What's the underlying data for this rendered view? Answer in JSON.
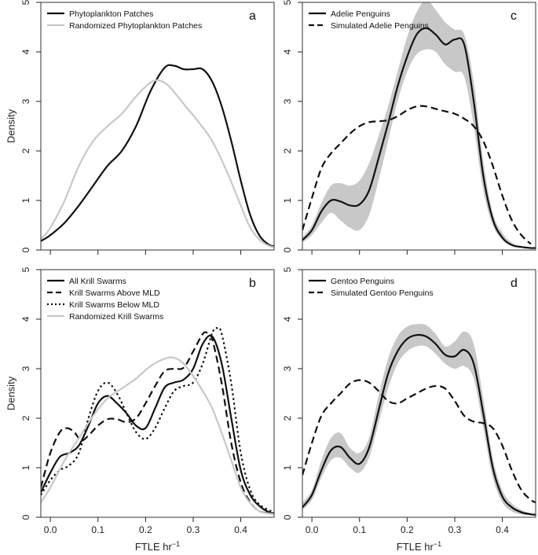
{
  "figure": {
    "xlabel": "FTLE hr",
    "xlabel_sup": "−1",
    "ylabel": "Density"
  },
  "chart_data": [
    {
      "id": "a",
      "type": "line",
      "panel_label": "a",
      "xlim": [
        -0.02,
        0.47
      ],
      "ylim": [
        0,
        5
      ],
      "xticks": [
        "0.0",
        "0.1",
        "0.2",
        "0.3",
        "0.4"
      ],
      "xtick_values": [
        0.0,
        0.1,
        0.2,
        0.3,
        0.4
      ],
      "yticks": [
        "0",
        "1",
        "2",
        "3",
        "4",
        "5"
      ],
      "ytick_values": [
        0,
        1,
        2,
        3,
        4,
        5
      ],
      "show_ylabel": true,
      "show_xlabel": false,
      "show_xtick_labels": false,
      "legend_position": "top-left",
      "series": [
        {
          "name": "Phytoplankton Patches",
          "color": "#111111",
          "style": "solid",
          "width": 2.2,
          "x": [
            -0.02,
            0.0,
            0.03,
            0.06,
            0.09,
            0.12,
            0.15,
            0.18,
            0.21,
            0.24,
            0.26,
            0.28,
            0.3,
            0.32,
            0.34,
            0.36,
            0.38,
            0.4,
            0.42,
            0.44,
            0.46,
            0.47
          ],
          "y": [
            0.18,
            0.3,
            0.55,
            0.9,
            1.3,
            1.7,
            2.0,
            2.5,
            3.2,
            3.68,
            3.72,
            3.65,
            3.65,
            3.65,
            3.4,
            2.9,
            2.2,
            1.4,
            0.7,
            0.28,
            0.1,
            0.08
          ]
        },
        {
          "name": "Randomized Phytoplankton Patches",
          "color": "#c8c8c8",
          "style": "solid",
          "width": 2.2,
          "x": [
            -0.02,
            0.0,
            0.03,
            0.06,
            0.09,
            0.12,
            0.15,
            0.18,
            0.21,
            0.23,
            0.25,
            0.28,
            0.31,
            0.34,
            0.37,
            0.4,
            0.42,
            0.44,
            0.46,
            0.47
          ],
          "y": [
            0.22,
            0.45,
            1.0,
            1.7,
            2.2,
            2.5,
            2.75,
            3.1,
            3.38,
            3.42,
            3.3,
            2.95,
            2.6,
            2.2,
            1.6,
            0.9,
            0.45,
            0.2,
            0.08,
            0.06
          ]
        }
      ]
    },
    {
      "id": "b",
      "type": "line",
      "panel_label": "b",
      "xlim": [
        -0.02,
        0.47
      ],
      "ylim": [
        0,
        5
      ],
      "xticks": [
        "0.0",
        "0.1",
        "0.2",
        "0.3",
        "0.4"
      ],
      "xtick_values": [
        0.0,
        0.1,
        0.2,
        0.3,
        0.4
      ],
      "yticks": [
        "0",
        "1",
        "2",
        "3",
        "4",
        "5"
      ],
      "ytick_values": [
        0,
        1,
        2,
        3,
        4,
        5
      ],
      "show_ylabel": true,
      "show_xlabel": true,
      "show_xtick_labels": true,
      "legend_position": "top-left",
      "series": [
        {
          "name": "All Krill Swarms",
          "color": "#111111",
          "style": "solid",
          "width": 2.2,
          "x": [
            -0.02,
            0.0,
            0.02,
            0.04,
            0.06,
            0.08,
            0.1,
            0.12,
            0.14,
            0.16,
            0.18,
            0.2,
            0.22,
            0.24,
            0.26,
            0.28,
            0.3,
            0.32,
            0.34,
            0.36,
            0.38,
            0.4,
            0.42,
            0.44,
            0.46,
            0.47
          ],
          "y": [
            0.5,
            0.9,
            1.22,
            1.3,
            1.45,
            1.85,
            2.3,
            2.45,
            2.3,
            2.1,
            1.85,
            1.8,
            2.2,
            2.62,
            2.72,
            2.78,
            3.0,
            3.5,
            3.65,
            3.1,
            2.0,
            0.95,
            0.45,
            0.22,
            0.1,
            0.08
          ]
        },
        {
          "name": "Krill Swarms Above MLD",
          "color": "#111111",
          "style": "dashed",
          "width": 2.2,
          "x": [
            -0.02,
            0.0,
            0.02,
            0.035,
            0.05,
            0.065,
            0.08,
            0.1,
            0.12,
            0.14,
            0.16,
            0.18,
            0.2,
            0.22,
            0.24,
            0.26,
            0.28,
            0.3,
            0.32,
            0.33,
            0.34,
            0.36,
            0.38,
            0.4,
            0.42,
            0.44,
            0.47
          ],
          "y": [
            0.6,
            1.3,
            1.72,
            1.8,
            1.72,
            1.55,
            1.65,
            1.85,
            1.98,
            1.98,
            1.92,
            2.0,
            2.3,
            2.65,
            2.95,
            3.0,
            3.02,
            3.35,
            3.7,
            3.72,
            3.6,
            2.7,
            1.5,
            0.7,
            0.3,
            0.12,
            0.08
          ]
        },
        {
          "name": "Krill Swarms Below MLD",
          "color": "#111111",
          "style": "dotted",
          "width": 2.2,
          "x": [
            -0.02,
            0.0,
            0.02,
            0.04,
            0.06,
            0.08,
            0.1,
            0.12,
            0.14,
            0.16,
            0.18,
            0.2,
            0.22,
            0.24,
            0.26,
            0.28,
            0.3,
            0.32,
            0.34,
            0.35,
            0.36,
            0.38,
            0.4,
            0.42,
            0.44,
            0.47
          ],
          "y": [
            0.45,
            0.75,
            0.95,
            1.05,
            1.3,
            2.0,
            2.55,
            2.72,
            2.5,
            2.1,
            1.72,
            1.58,
            1.8,
            2.2,
            2.55,
            2.65,
            2.72,
            3.1,
            3.72,
            3.82,
            3.7,
            2.7,
            1.3,
            0.55,
            0.25,
            0.1
          ]
        },
        {
          "name": "Randomized Krill Swarms",
          "color": "#c8c8c8",
          "style": "solid",
          "width": 2.2,
          "x": [
            -0.02,
            0.0,
            0.03,
            0.06,
            0.09,
            0.12,
            0.15,
            0.18,
            0.21,
            0.24,
            0.26,
            0.28,
            0.3,
            0.32,
            0.34,
            0.36,
            0.38,
            0.4,
            0.42,
            0.44,
            0.47
          ],
          "y": [
            0.3,
            0.6,
            1.15,
            1.6,
            2.05,
            2.4,
            2.6,
            2.8,
            3.05,
            3.2,
            3.22,
            3.1,
            2.85,
            2.55,
            2.2,
            1.7,
            1.15,
            0.6,
            0.28,
            0.12,
            0.06
          ]
        }
      ]
    },
    {
      "id": "c",
      "type": "line",
      "panel_label": "c",
      "xlim": [
        -0.02,
        0.47
      ],
      "ylim": [
        0,
        5
      ],
      "xticks": [
        "0.0",
        "0.1",
        "0.2",
        "0.3",
        "0.4"
      ],
      "xtick_values": [
        0.0,
        0.1,
        0.2,
        0.3,
        0.4
      ],
      "yticks": [
        "0",
        "1",
        "2",
        "3",
        "4",
        "5"
      ],
      "ytick_values": [
        0,
        1,
        2,
        3,
        4,
        5
      ],
      "show_ylabel": false,
      "show_xlabel": false,
      "show_xtick_labels": false,
      "legend_position": "top-left",
      "band": {
        "color": "#c8c8c8",
        "x": [
          -0.02,
          0.0,
          0.02,
          0.04,
          0.06,
          0.08,
          0.1,
          0.12,
          0.14,
          0.16,
          0.18,
          0.2,
          0.22,
          0.24,
          0.26,
          0.28,
          0.3,
          0.32,
          0.34,
          0.36,
          0.38,
          0.4,
          0.42,
          0.44,
          0.46,
          0.47
        ],
        "lower": [
          0.15,
          0.3,
          0.55,
          0.75,
          0.6,
          0.45,
          0.4,
          0.7,
          1.4,
          2.2,
          3.0,
          3.6,
          3.95,
          4.05,
          4.0,
          3.75,
          3.6,
          3.5,
          2.5,
          1.2,
          0.5,
          0.2,
          0.08,
          0.05,
          0.03,
          0.03
        ],
        "upper": [
          0.25,
          0.5,
          0.95,
          1.3,
          1.35,
          1.3,
          1.4,
          1.75,
          2.3,
          2.9,
          3.6,
          4.3,
          4.8,
          5.05,
          4.85,
          4.6,
          4.45,
          4.35,
          3.4,
          1.8,
          0.75,
          0.35,
          0.15,
          0.08,
          0.05,
          0.05
        ]
      },
      "series": [
        {
          "name": "Adelie Penguins",
          "color": "#111111",
          "style": "solid",
          "width": 2.2,
          "x": [
            -0.02,
            0.0,
            0.02,
            0.04,
            0.06,
            0.08,
            0.1,
            0.12,
            0.14,
            0.16,
            0.18,
            0.2,
            0.22,
            0.24,
            0.26,
            0.28,
            0.3,
            0.32,
            0.34,
            0.36,
            0.38,
            0.4,
            0.42,
            0.44,
            0.46,
            0.47
          ],
          "y": [
            0.2,
            0.4,
            0.78,
            1.0,
            0.98,
            0.9,
            0.92,
            1.2,
            1.85,
            2.55,
            3.3,
            3.9,
            4.35,
            4.48,
            4.35,
            4.15,
            4.25,
            4.15,
            3.0,
            1.5,
            0.62,
            0.25,
            0.1,
            0.06,
            0.04,
            0.04
          ]
        },
        {
          "name": "Simulated Adelie Penguins",
          "color": "#111111",
          "style": "dashed",
          "width": 2.2,
          "x": [
            -0.02,
            0.0,
            0.02,
            0.04,
            0.06,
            0.08,
            0.1,
            0.12,
            0.14,
            0.16,
            0.18,
            0.2,
            0.22,
            0.24,
            0.26,
            0.28,
            0.3,
            0.32,
            0.34,
            0.36,
            0.38,
            0.4,
            0.42,
            0.44,
            0.46
          ],
          "y": [
            0.4,
            1.05,
            1.65,
            1.95,
            2.15,
            2.35,
            2.5,
            2.58,
            2.6,
            2.62,
            2.7,
            2.82,
            2.9,
            2.9,
            2.85,
            2.8,
            2.75,
            2.65,
            2.5,
            2.2,
            1.7,
            1.1,
            0.6,
            0.3,
            0.12
          ]
        }
      ]
    },
    {
      "id": "d",
      "type": "line",
      "panel_label": "d",
      "xlim": [
        -0.02,
        0.47
      ],
      "ylim": [
        0,
        5
      ],
      "xticks": [
        "0.0",
        "0.1",
        "0.2",
        "0.3",
        "0.4"
      ],
      "xtick_values": [
        0.0,
        0.1,
        0.2,
        0.3,
        0.4
      ],
      "yticks": [
        "0",
        "1",
        "2",
        "3",
        "4",
        "5"
      ],
      "ytick_values": [
        0,
        1,
        2,
        3,
        4,
        5
      ],
      "show_ylabel": false,
      "show_xlabel": true,
      "show_xtick_labels": true,
      "legend_position": "top-left",
      "band": {
        "color": "#c8c8c8",
        "x": [
          -0.02,
          0.0,
          0.02,
          0.04,
          0.06,
          0.08,
          0.1,
          0.12,
          0.14,
          0.16,
          0.18,
          0.2,
          0.22,
          0.24,
          0.26,
          0.28,
          0.3,
          0.32,
          0.34,
          0.36,
          0.38,
          0.4,
          0.42,
          0.44,
          0.46,
          0.47
        ],
        "lower": [
          0.15,
          0.35,
          0.8,
          1.15,
          1.2,
          1.0,
          0.9,
          1.2,
          1.9,
          2.6,
          3.1,
          3.35,
          3.45,
          3.45,
          3.3,
          3.1,
          3.0,
          3.05,
          2.8,
          1.8,
          0.8,
          0.3,
          0.12,
          0.06,
          0.04,
          0.03
        ],
        "upper": [
          0.3,
          0.55,
          1.15,
          1.6,
          1.7,
          1.4,
          1.3,
          1.6,
          2.45,
          3.2,
          3.65,
          3.85,
          3.9,
          3.88,
          3.7,
          3.45,
          3.55,
          3.75,
          3.5,
          2.4,
          1.2,
          0.55,
          0.28,
          0.15,
          0.08,
          0.06
        ]
      },
      "series": [
        {
          "name": "Gentoo Penguins",
          "color": "#111111",
          "style": "solid",
          "width": 2.2,
          "x": [
            -0.02,
            0.0,
            0.02,
            0.04,
            0.06,
            0.08,
            0.1,
            0.12,
            0.14,
            0.16,
            0.18,
            0.2,
            0.22,
            0.24,
            0.26,
            0.28,
            0.3,
            0.32,
            0.34,
            0.36,
            0.38,
            0.4,
            0.42,
            0.44,
            0.46,
            0.47
          ],
          "y": [
            0.2,
            0.45,
            0.95,
            1.35,
            1.42,
            1.2,
            1.08,
            1.4,
            2.15,
            2.9,
            3.35,
            3.6,
            3.68,
            3.65,
            3.5,
            3.28,
            3.25,
            3.38,
            3.1,
            2.1,
            1.0,
            0.42,
            0.2,
            0.1,
            0.06,
            0.05
          ]
        },
        {
          "name": "Simulated Gentoo Penguins",
          "color": "#111111",
          "style": "dashed",
          "width": 2.2,
          "x": [
            -0.02,
            0.0,
            0.02,
            0.04,
            0.06,
            0.08,
            0.1,
            0.12,
            0.14,
            0.16,
            0.18,
            0.2,
            0.22,
            0.24,
            0.26,
            0.28,
            0.3,
            0.32,
            0.34,
            0.36,
            0.38,
            0.4,
            0.42,
            0.44,
            0.46,
            0.47
          ],
          "y": [
            0.85,
            1.5,
            2.05,
            2.3,
            2.5,
            2.7,
            2.77,
            2.72,
            2.55,
            2.35,
            2.3,
            2.4,
            2.5,
            2.6,
            2.65,
            2.6,
            2.35,
            2.05,
            1.93,
            1.9,
            1.8,
            1.45,
            0.95,
            0.55,
            0.35,
            0.3
          ]
        }
      ]
    }
  ]
}
